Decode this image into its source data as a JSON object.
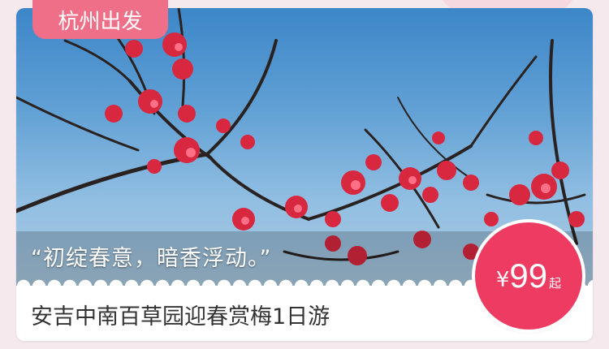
{
  "tag": {
    "label": "杭州出发"
  },
  "hero": {
    "quote": "“初绽春意，暗香浮动。”"
  },
  "product": {
    "title": "安吉中南百草园迎春赏梅1日游"
  },
  "price": {
    "currency": "¥",
    "amount": "99",
    "suffix": "起"
  },
  "colors": {
    "accent": "#ee3b62",
    "tag": "#ee6f87",
    "title_text": "#333333"
  }
}
